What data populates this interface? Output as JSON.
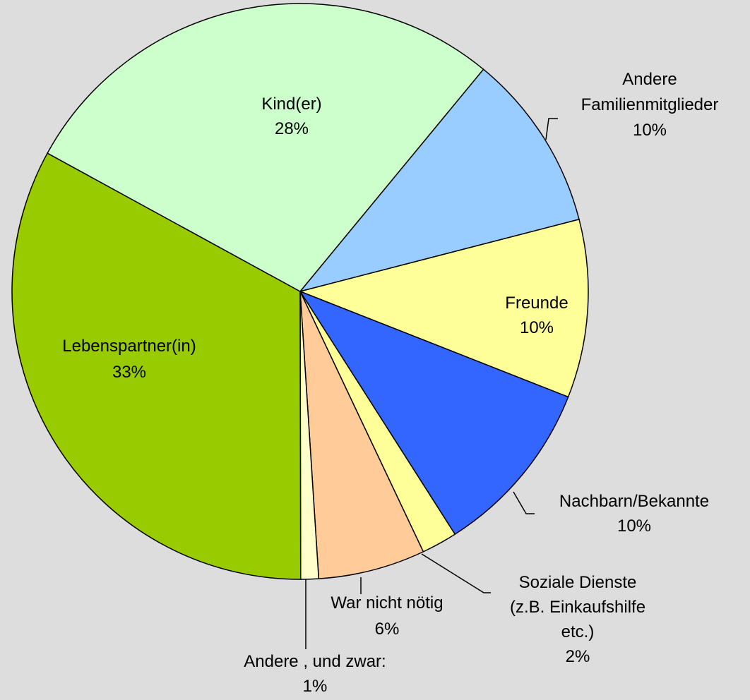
{
  "chart_data": {
    "type": "pie",
    "categories": [
      "Andere\nFamilienmitglieder",
      "Freunde",
      "Nachbarn/Bekannte",
      "Soziale Dienste\n(z.B. Einkaufshilfe\netc.)",
      "War nicht nötig",
      "Andere , und zwar:",
      "Lebenspartner(in)",
      "Kind(er)"
    ],
    "values": [
      10,
      10,
      10,
      2,
      6,
      1,
      33,
      28
    ],
    "value_labels": [
      "10%",
      "10%",
      "10%",
      "2%",
      "6%",
      "1%",
      "33%",
      "28%"
    ],
    "colors": [
      "#99ccff",
      "#ffff99",
      "#3366ff",
      "#ffff99",
      "#ffcc99",
      "#ffffcc",
      "#99cc00",
      "#ccffcc"
    ]
  }
}
